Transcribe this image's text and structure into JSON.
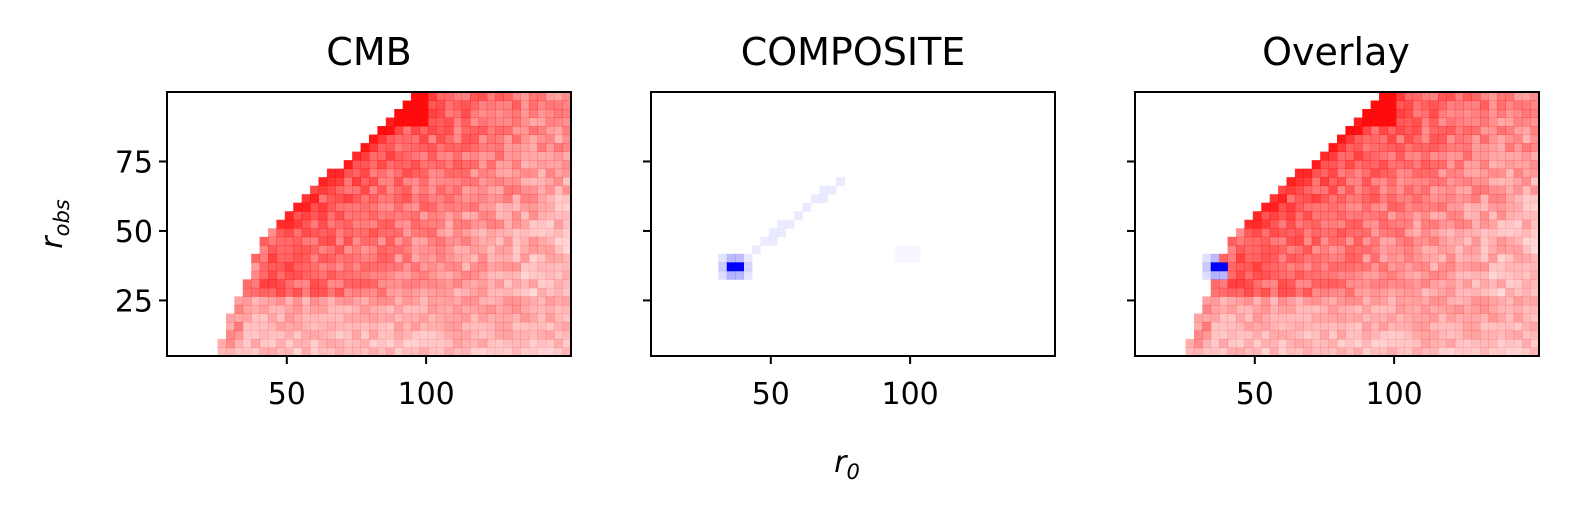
{
  "chart_data": [
    {
      "type": "heatmap",
      "title": "CMB",
      "colormap": "white-to-red",
      "color": "#ff0000",
      "x_range": [
        7,
        152
      ],
      "y_range": [
        5,
        100
      ],
      "x_ticks": [
        50,
        100
      ],
      "y_ticks": [
        25,
        50,
        75
      ],
      "show_y_tick_labels": true,
      "xlabel": "",
      "ylabel_base": "r",
      "ylabel_sub": "obs",
      "grid": false
    },
    {
      "type": "heatmap",
      "title": "COMPOSITE",
      "colormap": "white-to-blue",
      "color": "#0000ff",
      "x_range": [
        7,
        152
      ],
      "y_range": [
        5,
        100
      ],
      "x_ticks": [
        50,
        100
      ],
      "y_ticks": [
        25,
        50,
        75
      ],
      "show_y_tick_labels": false,
      "xlabel_base": "r",
      "xlabel_sub": "0",
      "grid": false
    },
    {
      "type": "heatmap",
      "title": "Overlay",
      "colormap": "red and blue overlay",
      "x_range": [
        7,
        152
      ],
      "y_range": [
        5,
        100
      ],
      "x_ticks": [
        50,
        100
      ],
      "y_ticks": [
        25,
        50,
        75
      ],
      "show_y_tick_labels": false,
      "grid": false
    }
  ]
}
